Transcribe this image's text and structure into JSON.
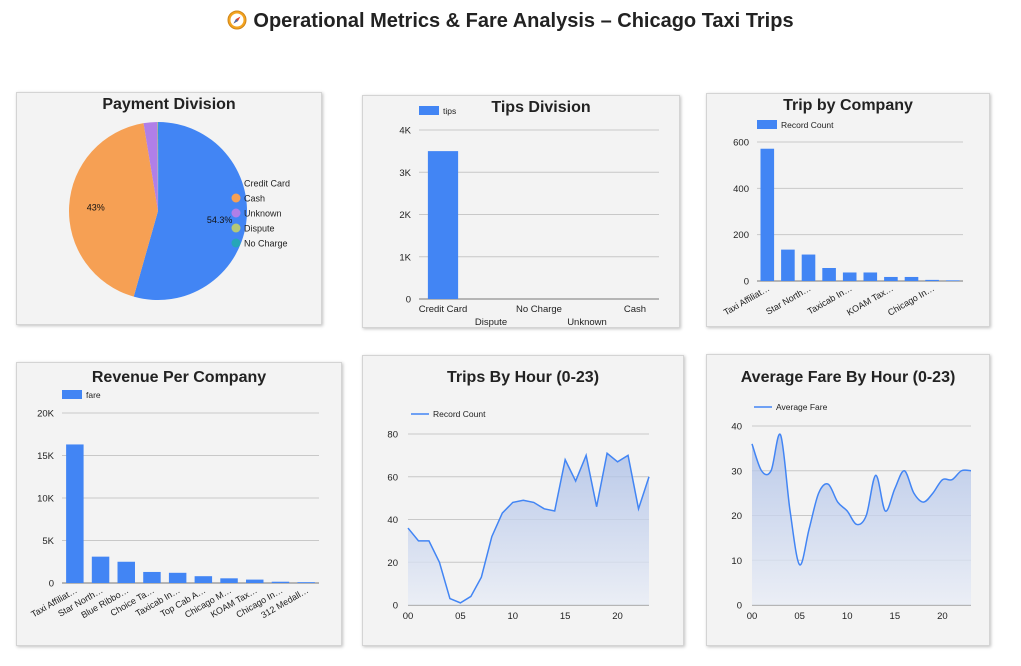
{
  "page": {
    "title": "Operational Metrics & Fare Analysis – Chicago Taxi Trips",
    "title_icon": "compass-icon"
  },
  "colors": {
    "blue": "#4285f4",
    "orange": "#f6a054",
    "purple": "#b07fe8",
    "olive": "#b4c876",
    "teal": "#26a6b8",
    "grid": "#c8c8c8",
    "card_bg": "#f3f3f3"
  },
  "chart_data": [
    {
      "id": "payment",
      "type": "pie",
      "title": "Payment Division",
      "categories": [
        "Credit Card",
        "Cash",
        "Unknown",
        "Dispute",
        "No Charge"
      ],
      "values": [
        54.3,
        43.0,
        2.5,
        0.1,
        0.1
      ],
      "slice_labels": [
        "54.3%",
        "43%",
        "",
        "",
        ""
      ],
      "colors": [
        "#4285f4",
        "#f6a054",
        "#b07fe8",
        "#b4c876",
        "#26a6b8"
      ],
      "legend": "right"
    },
    {
      "id": "tips",
      "type": "bar",
      "title": "Tips Division",
      "series_name": "tips",
      "categories": [
        "Credit Card",
        "Dispute",
        "No Charge",
        "Unknown",
        "Cash"
      ],
      "values": [
        3500,
        0,
        0,
        0,
        0
      ],
      "yticks": [
        "0",
        "1K",
        "2K",
        "3K",
        "4K"
      ],
      "ylim": [
        0,
        4000
      ],
      "legend": "top-left"
    },
    {
      "id": "trips_company",
      "type": "bar",
      "title": "Trip by Company",
      "series_name": "Record Count",
      "categories": [
        "Taxi Affiliat…",
        "",
        "Star North…",
        "",
        "Taxicab In…",
        "",
        "KOAM Tax…",
        "",
        "Chicago In…",
        ""
      ],
      "values": [
        590,
        140,
        118,
        58,
        38,
        38,
        18,
        18,
        5,
        3
      ],
      "yticks": [
        "0",
        "200",
        "400",
        "600"
      ],
      "ylim": [
        0,
        620
      ],
      "legend": "top-left"
    },
    {
      "id": "revenue",
      "type": "bar",
      "title": "Revenue Per Company",
      "series_name": "fare",
      "categories": [
        "Taxi Affiliat…",
        "Star North…",
        "Blue Ribbo…",
        "Choice Ta…",
        "Taxicab In…",
        "Top Cab A…",
        "Chicago M…",
        "KOAM Tax…",
        "Chicago In…",
        "312 Medall…"
      ],
      "values": [
        16300,
        3100,
        2500,
        1300,
        1200,
        800,
        550,
        400,
        150,
        100
      ],
      "yticks": [
        "0",
        "5K",
        "10K",
        "15K",
        "20K"
      ],
      "ylim": [
        0,
        20000
      ],
      "legend": "top-left"
    },
    {
      "id": "trips_hour",
      "type": "area",
      "title": "Trips By Hour (0-23)",
      "series_name": "Record Count",
      "x": [
        0,
        1,
        2,
        3,
        4,
        5,
        6,
        7,
        8,
        9,
        10,
        11,
        12,
        13,
        14,
        15,
        16,
        17,
        18,
        19,
        20,
        21,
        22,
        23
      ],
      "values": [
        36,
        30,
        30,
        20,
        3,
        1,
        4,
        13,
        32,
        43,
        48,
        49,
        48,
        45,
        44,
        68,
        58,
        70,
        46,
        71,
        67,
        70,
        45,
        60
      ],
      "xticks": [
        "00",
        "05",
        "10",
        "15",
        "20"
      ],
      "yticks": [
        "0",
        "20",
        "40",
        "60",
        "80"
      ],
      "ylim": [
        0,
        80
      ],
      "legend": "top-left"
    },
    {
      "id": "fare_hour",
      "type": "area",
      "title": "Average Fare By Hour (0-23)",
      "series_name": "Average Fare",
      "x": [
        0,
        1,
        2,
        3,
        4,
        5,
        6,
        7,
        8,
        9,
        10,
        11,
        12,
        13,
        14,
        15,
        16,
        17,
        18,
        19,
        20,
        21,
        22,
        23
      ],
      "values": [
        36,
        30,
        30,
        38,
        21,
        9,
        17,
        25,
        27,
        23,
        21,
        18,
        20,
        29,
        21,
        26,
        30,
        25,
        23,
        25,
        28,
        28,
        30,
        30
      ],
      "xticks": [
        "00",
        "05",
        "10",
        "15",
        "20"
      ],
      "yticks": [
        "0",
        "10",
        "20",
        "30",
        "40"
      ],
      "ylim": [
        0,
        40
      ],
      "legend": "top-left"
    }
  ]
}
